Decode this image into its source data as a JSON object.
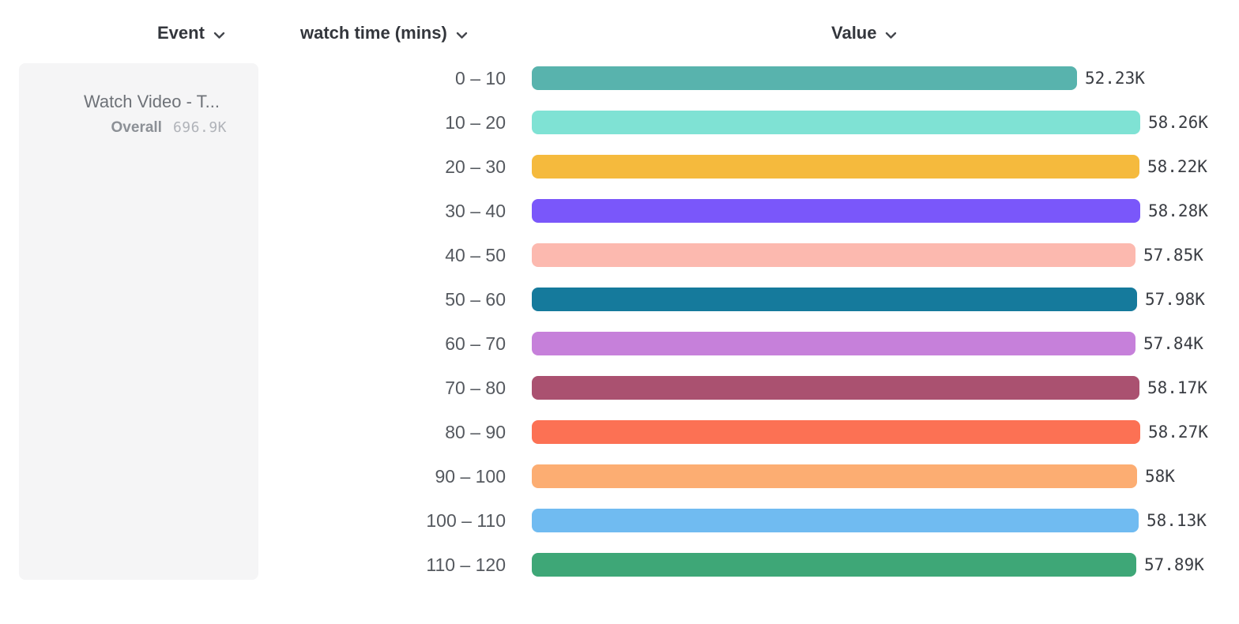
{
  "header": {
    "event": {
      "label": "Event"
    },
    "breakdown": {
      "label": "watch time (mins)"
    },
    "value": {
      "label": "Value"
    }
  },
  "event_card": {
    "title": "Watch Video - T...",
    "overall_label": "Overall",
    "overall_value": "696.9K"
  },
  "chart_data": {
    "type": "bar",
    "orientation": "horizontal",
    "title": "",
    "xlabel": "Value",
    "ylabel": "watch time (mins)",
    "value_axis_range": [
      0,
      58280
    ],
    "grid": false,
    "legend": false,
    "categories": [
      "0 – 10",
      "10 – 20",
      "20 – 30",
      "30 – 40",
      "40 – 50",
      "50 – 60",
      "60 – 70",
      "70 – 80",
      "80 – 90",
      "90 – 100",
      "100 – 110",
      "110 – 120"
    ],
    "values": [
      52230,
      58260,
      58220,
      58280,
      57850,
      57980,
      57840,
      58170,
      58270,
      58000,
      58130,
      57890
    ],
    "value_labels": [
      "52.23K",
      "58.26K",
      "58.22K",
      "58.28K",
      "57.85K",
      "57.98K",
      "57.84K",
      "58.17K",
      "58.27K",
      "58K",
      "58.13K",
      "57.89K"
    ],
    "colors": [
      "#58b3ad",
      "#7fe2d4",
      "#f5ba3d",
      "#7a57fa",
      "#fcb9af",
      "#157a9c",
      "#c680da",
      "#aa5170",
      "#fc7154",
      "#fcad72",
      "#70bbf1",
      "#3ea777"
    ]
  },
  "icons": {
    "chevron_color": "#44474d"
  }
}
